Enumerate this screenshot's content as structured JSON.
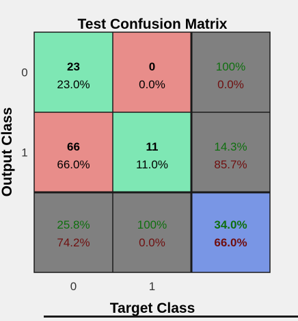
{
  "chart_data": {
    "type": "heatmap",
    "title": "Test Confusion Matrix",
    "xlabel": "Target Class",
    "ylabel": "Output Class",
    "x_tick_labels": [
      "0",
      "1"
    ],
    "y_tick_labels": [
      "0",
      "1"
    ],
    "cells": [
      [
        {
          "count": "23",
          "percent": "23.0%",
          "kind": "correct"
        },
        {
          "count": "0",
          "percent": "0.0%",
          "kind": "incorrect"
        }
      ],
      [
        {
          "count": "66",
          "percent": "66.0%",
          "kind": "incorrect"
        },
        {
          "count": "11",
          "percent": "11.0%",
          "kind": "correct"
        }
      ]
    ],
    "row_summary": [
      {
        "correct": "100%",
        "incorrect": "0.0%"
      },
      {
        "correct": "14.3%",
        "incorrect": "85.7%"
      }
    ],
    "col_summary": [
      {
        "correct": "25.8%",
        "incorrect": "74.2%"
      },
      {
        "correct": "100%",
        "incorrect": "0.0%"
      }
    ],
    "overall": {
      "correct": "34.0%",
      "incorrect": "66.0%"
    },
    "colors": {
      "correct_cell": "#7ee7b4",
      "incorrect_cell": "#e88d8a",
      "summary_cell": "#808080",
      "overall_cell": "#7996e5",
      "correct_text": "#0f6f0f",
      "incorrect_text": "#6f0f0f",
      "cell_text": "#000000",
      "grid_line": "#1a1a1a",
      "background": "#f0f0f0"
    }
  }
}
